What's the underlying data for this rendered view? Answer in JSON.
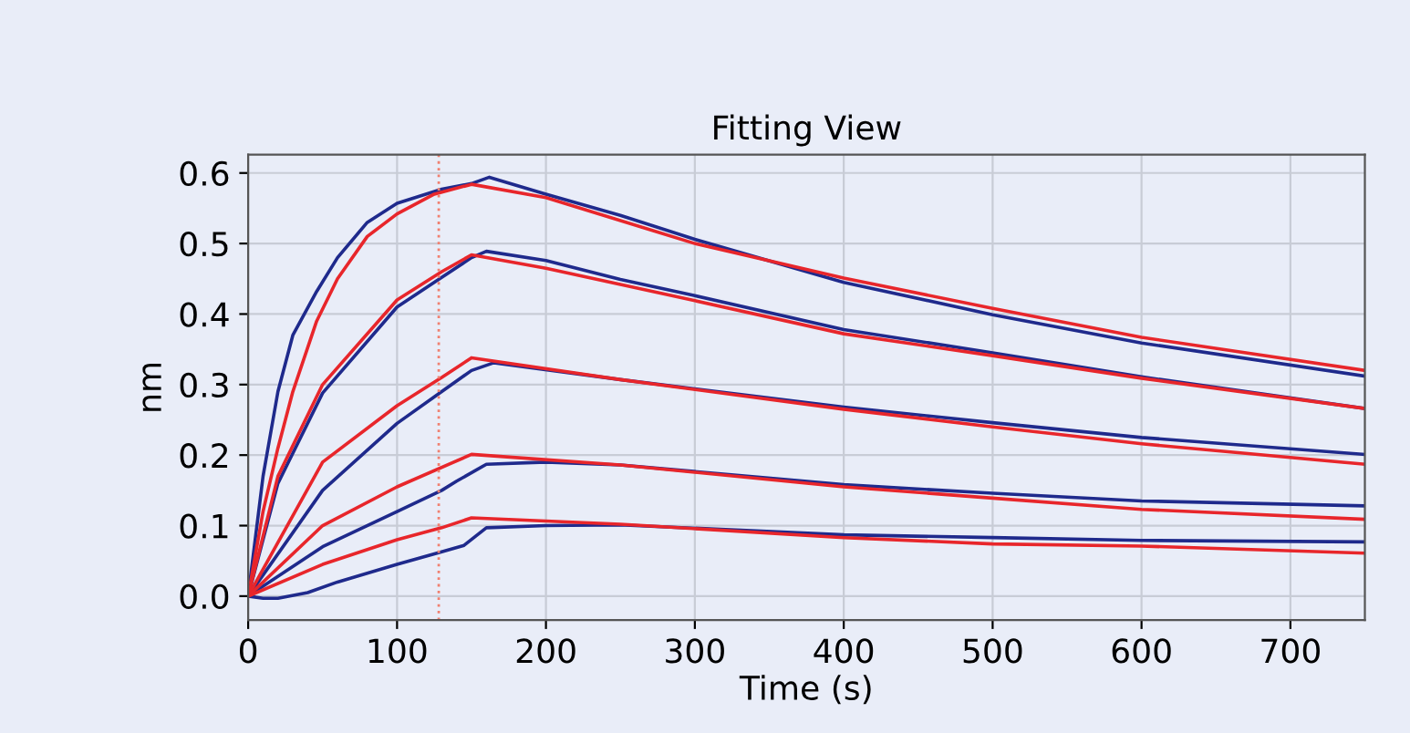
{
  "chart_data": {
    "type": "line",
    "title": "Fitting View",
    "xlabel": "Time (s)",
    "ylabel": "nm",
    "xlim": [
      0,
      750
    ],
    "ylim": [
      -0.034,
      0.626
    ],
    "xticks": [
      0,
      100,
      200,
      300,
      400,
      500,
      600,
      700
    ],
    "yticks": [
      {
        "value": 0,
        "label": "0.0"
      },
      0.1,
      0.2,
      0.3,
      0.4,
      0.5,
      0.6
    ],
    "grid": true,
    "ref_lines": [
      {
        "axis": "x",
        "value": 128,
        "color": "#f08070",
        "line_style": "dotted"
      }
    ],
    "series": [
      {
        "color": "#1f2a8c",
        "x": [
          0,
          10,
          20,
          30,
          46,
          60,
          80,
          100,
          130,
          150,
          162,
          200,
          250,
          300,
          400,
          500,
          600,
          750
        ],
        "values": [
          0,
          0.17,
          0.29,
          0.37,
          0.432,
          0.48,
          0.53,
          0.557,
          0.577,
          0.585,
          0.594,
          0.57,
          0.54,
          0.506,
          0.445,
          0.399,
          0.359,
          0.312
        ]
      },
      {
        "color": "#e8262b",
        "x": [
          0,
          10,
          20,
          30,
          46,
          60,
          80,
          100,
          125,
          150,
          200,
          300,
          400,
          500,
          600,
          750
        ],
        "values": [
          0,
          0.12,
          0.21,
          0.29,
          0.39,
          0.45,
          0.51,
          0.542,
          0.57,
          0.584,
          0.565,
          0.5,
          0.451,
          0.408,
          0.367,
          0.32
        ]
      },
      {
        "color": "#1f2a8c",
        "x": [
          0,
          20,
          50,
          100,
          130,
          150,
          160,
          200,
          250,
          300,
          400,
          500,
          600,
          750
        ],
        "values": [
          0,
          0.16,
          0.288,
          0.41,
          0.452,
          0.48,
          0.489,
          0.476,
          0.449,
          0.426,
          0.378,
          0.345,
          0.311,
          0.266
        ]
      },
      {
        "color": "#e8262b",
        "x": [
          0,
          20,
          50,
          100,
          130,
          150,
          200,
          250,
          300,
          400,
          500,
          600,
          750
        ],
        "values": [
          0,
          0.17,
          0.3,
          0.42,
          0.46,
          0.484,
          0.465,
          0.442,
          0.419,
          0.372,
          0.341,
          0.309,
          0.266
        ]
      },
      {
        "color": "#1f2a8c",
        "x": [
          0,
          50,
          100,
          130,
          150,
          165,
          250,
          400,
          500,
          600,
          750
        ],
        "values": [
          0,
          0.15,
          0.245,
          0.29,
          0.32,
          0.331,
          0.307,
          0.268,
          0.246,
          0.225,
          0.201
        ]
      },
      {
        "color": "#e8262b",
        "x": [
          0,
          50,
          100,
          130,
          150,
          250,
          400,
          500,
          600,
          750
        ],
        "values": [
          0,
          0.19,
          0.27,
          0.31,
          0.338,
          0.307,
          0.265,
          0.24,
          0.216,
          0.187
        ]
      },
      {
        "color": "#1f2a8c",
        "x": [
          0,
          50,
          100,
          130,
          140,
          160,
          200,
          250,
          400,
          500,
          600,
          750
        ],
        "values": [
          0,
          0.07,
          0.12,
          0.15,
          0.163,
          0.187,
          0.19,
          0.186,
          0.158,
          0.146,
          0.135,
          0.128
        ]
      },
      {
        "color": "#e8262b",
        "x": [
          0,
          50,
          100,
          150,
          250,
          400,
          500,
          600,
          750
        ],
        "values": [
          0,
          0.1,
          0.155,
          0.201,
          0.186,
          0.155,
          0.139,
          0.123,
          0.109
        ]
      },
      {
        "color": "#1f2a8c",
        "x": [
          0,
          10,
          20,
          40,
          60,
          100,
          130,
          145,
          160,
          200,
          250,
          400,
          500,
          600,
          750
        ],
        "values": [
          0,
          -0.003,
          -0.003,
          0.005,
          0.02,
          0.045,
          0.063,
          0.072,
          0.097,
          0.1,
          0.101,
          0.087,
          0.083,
          0.079,
          0.077
        ]
      },
      {
        "color": "#e8262b",
        "x": [
          0,
          50,
          100,
          130,
          150,
          250,
          400,
          500,
          600,
          750
        ],
        "values": [
          0,
          0.045,
          0.08,
          0.097,
          0.111,
          0.102,
          0.083,
          0.074,
          0.071,
          0.061
        ]
      }
    ]
  }
}
